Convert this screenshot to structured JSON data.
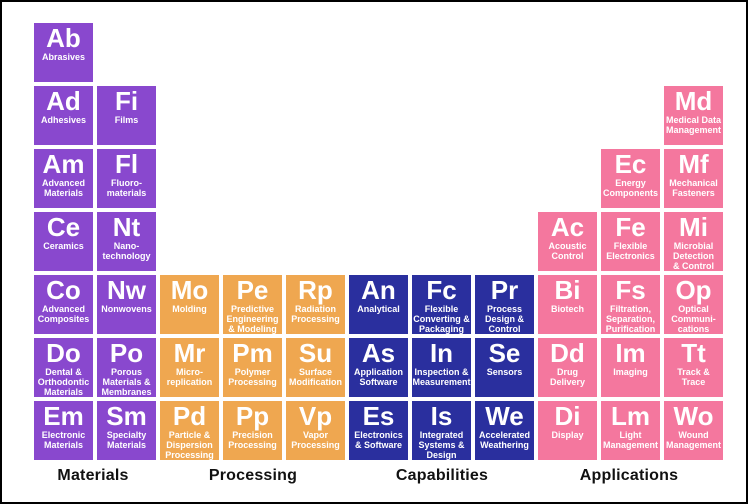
{
  "colors": {
    "materials": "#8948ce",
    "processing": "#efa750",
    "capabilities": "#2a2f9e",
    "applications": "#f4779e"
  },
  "legend": [
    "Materials",
    "Processing",
    "Capabilities",
    "Applications"
  ],
  "cells": [
    {
      "symbol": "Ab",
      "name": "Abrasives",
      "row": 1,
      "col": 1,
      "category": "materials"
    },
    {
      "symbol": "Ad",
      "name": "Adhesives",
      "row": 2,
      "col": 1,
      "category": "materials"
    },
    {
      "symbol": "Fi",
      "name": "Films",
      "row": 2,
      "col": 2,
      "category": "materials"
    },
    {
      "symbol": "Md",
      "name": "Medical Data\nManagement",
      "row": 2,
      "col": 11,
      "category": "applications"
    },
    {
      "symbol": "Am",
      "name": "Advanced\nMaterials",
      "row": 3,
      "col": 1,
      "category": "materials"
    },
    {
      "symbol": "Fl",
      "name": "Fluoro-\nmaterials",
      "row": 3,
      "col": 2,
      "category": "materials"
    },
    {
      "symbol": "Ec",
      "name": "Energy\nComponents",
      "row": 3,
      "col": 10,
      "category": "applications"
    },
    {
      "symbol": "Mf",
      "name": "Mechanical\nFasteners",
      "row": 3,
      "col": 11,
      "category": "applications"
    },
    {
      "symbol": "Ce",
      "name": "Ceramics",
      "row": 4,
      "col": 1,
      "category": "materials"
    },
    {
      "symbol": "Nt",
      "name": "Nano-\ntechnology",
      "row": 4,
      "col": 2,
      "category": "materials"
    },
    {
      "symbol": "Ac",
      "name": "Acoustic\nControl",
      "row": 4,
      "col": 9,
      "category": "applications"
    },
    {
      "symbol": "Fe",
      "name": "Flexible\nElectronics",
      "row": 4,
      "col": 10,
      "category": "applications"
    },
    {
      "symbol": "Mi",
      "name": "Microbial\nDetection\n& Control",
      "row": 4,
      "col": 11,
      "category": "applications"
    },
    {
      "symbol": "Co",
      "name": "Advanced\nComposites",
      "row": 5,
      "col": 1,
      "category": "materials"
    },
    {
      "symbol": "Nw",
      "name": "Nonwovens",
      "row": 5,
      "col": 2,
      "category": "materials"
    },
    {
      "symbol": "Mo",
      "name": "Molding",
      "row": 5,
      "col": 3,
      "category": "processing"
    },
    {
      "symbol": "Pe",
      "name": "Predictive\nEngineering\n& Modeling",
      "row": 5,
      "col": 4,
      "category": "processing"
    },
    {
      "symbol": "Rp",
      "name": "Radiation\nProcessing",
      "row": 5,
      "col": 5,
      "category": "processing"
    },
    {
      "symbol": "An",
      "name": "Analytical",
      "row": 5,
      "col": 6,
      "category": "capabilities"
    },
    {
      "symbol": "Fc",
      "name": "Flexible\nConverting &\nPackaging",
      "row": 5,
      "col": 7,
      "category": "capabilities"
    },
    {
      "symbol": "Pr",
      "name": "Process\nDesign &\nControl",
      "row": 5,
      "col": 8,
      "category": "capabilities"
    },
    {
      "symbol": "Bi",
      "name": "Biotech",
      "row": 5,
      "col": 9,
      "category": "applications"
    },
    {
      "symbol": "Fs",
      "name": "Filtration,\nSeparation,\nPurification",
      "row": 5,
      "col": 10,
      "category": "applications"
    },
    {
      "symbol": "Op",
      "name": "Optical\nCommuni-\ncations",
      "row": 5,
      "col": 11,
      "category": "applications"
    },
    {
      "symbol": "Do",
      "name": "Dental &\nOrthodontic\nMaterials",
      "row": 6,
      "col": 1,
      "category": "materials"
    },
    {
      "symbol": "Po",
      "name": "Porous\nMaterials &\nMembranes",
      "row": 6,
      "col": 2,
      "category": "materials"
    },
    {
      "symbol": "Mr",
      "name": "Micro-\nreplication",
      "row": 6,
      "col": 3,
      "category": "processing"
    },
    {
      "symbol": "Pm",
      "name": "Polymer\nProcessing",
      "row": 6,
      "col": 4,
      "category": "processing"
    },
    {
      "symbol": "Su",
      "name": "Surface\nModification",
      "row": 6,
      "col": 5,
      "category": "processing"
    },
    {
      "symbol": "As",
      "name": "Application\nSoftware",
      "row": 6,
      "col": 6,
      "category": "capabilities"
    },
    {
      "symbol": "In",
      "name": "Inspection &\nMeasurement",
      "row": 6,
      "col": 7,
      "category": "capabilities"
    },
    {
      "symbol": "Se",
      "name": "Sensors",
      "row": 6,
      "col": 8,
      "category": "capabilities"
    },
    {
      "symbol": "Dd",
      "name": "Drug\nDelivery",
      "row": 6,
      "col": 9,
      "category": "applications"
    },
    {
      "symbol": "Im",
      "name": "Imaging",
      "row": 6,
      "col": 10,
      "category": "applications"
    },
    {
      "symbol": "Tt",
      "name": "Track &\nTrace",
      "row": 6,
      "col": 11,
      "category": "applications"
    },
    {
      "symbol": "Em",
      "name": "Electronic\nMaterials",
      "row": 7,
      "col": 1,
      "category": "materials"
    },
    {
      "symbol": "Sm",
      "name": "Specialty\nMaterials",
      "row": 7,
      "col": 2,
      "category": "materials"
    },
    {
      "symbol": "Pd",
      "name": "Particle &\nDispersion\nProcessing",
      "row": 7,
      "col": 3,
      "category": "processing"
    },
    {
      "symbol": "Pp",
      "name": "Precision\nProcessing",
      "row": 7,
      "col": 4,
      "category": "processing"
    },
    {
      "symbol": "Vp",
      "name": "Vapor\nProcessing",
      "row": 7,
      "col": 5,
      "category": "processing"
    },
    {
      "symbol": "Es",
      "name": "Electronics\n& Software",
      "row": 7,
      "col": 6,
      "category": "capabilities"
    },
    {
      "symbol": "Is",
      "name": "Integrated\nSystems &\nDesign",
      "row": 7,
      "col": 7,
      "category": "capabilities"
    },
    {
      "symbol": "We",
      "name": "Accelerated\nWeathering",
      "row": 7,
      "col": 8,
      "category": "capabilities"
    },
    {
      "symbol": "Di",
      "name": "Display",
      "row": 7,
      "col": 9,
      "category": "applications"
    },
    {
      "symbol": "Lm",
      "name": "Light\nManagement",
      "row": 7,
      "col": 10,
      "category": "applications"
    },
    {
      "symbol": "Wo",
      "name": "Wound\nManagement",
      "row": 7,
      "col": 11,
      "category": "applications"
    }
  ]
}
